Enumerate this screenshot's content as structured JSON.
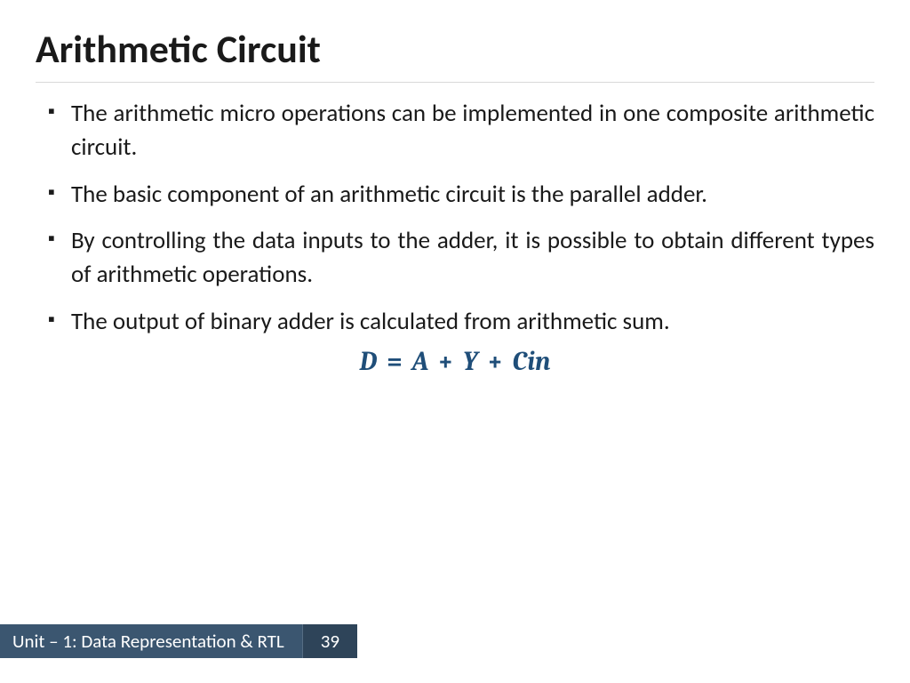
{
  "slide": {
    "title": "Arithmetic Circuit",
    "bullets": [
      "The arithmetic micro operations can be implemented in one composite arithmetic circuit.",
      "The basic component of an arithmetic circuit is the parallel adder.",
      "By controlling the data inputs to the adder, it is possible to obtain different types of arithmetic operations.",
      "The output of binary adder is calculated from arithmetic sum."
    ],
    "equation": {
      "lhs": "D",
      "rhs_terms": [
        "A",
        "Y",
        "Cin"
      ],
      "color": "#1f4e79",
      "fontsize_pt": 30,
      "font_weight": 700,
      "font_style": "italic"
    }
  },
  "footer": {
    "unit_label": "Unit – 1: Data Representation & RTL",
    "page_number": "39",
    "bg_color_label": "#3b5670",
    "bg_color_page": "#2e4459",
    "text_color": "#ffffff"
  },
  "style": {
    "title_fontsize_pt": 44,
    "title_color": "#1a1a1a",
    "body_fontsize_pt": 27,
    "body_color": "#1a1a1a",
    "hr_color": "#d8d8d8",
    "background_color": "#ffffff",
    "bullet_marker": "▪"
  }
}
